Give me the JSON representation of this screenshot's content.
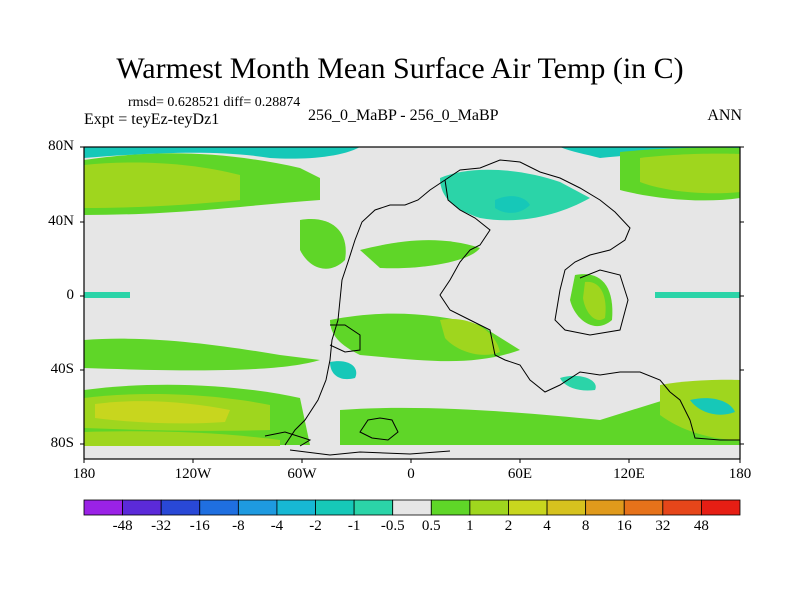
{
  "title": "Warmest Month Mean Surface Air Temp (in C)",
  "stats": "rmsd= 0.628521 diff= 0.28874",
  "expt": "Expt = teyEz-teyDz1",
  "case": "256_0_MaBP - 256_0_MaBP",
  "season": "ANN",
  "lat_ticks": [
    "80N",
    "40N",
    "0",
    "40S",
    "80S"
  ],
  "lon_ticks": [
    "180",
    "120W",
    "60W",
    "0",
    "60E",
    "120E",
    "180"
  ],
  "colorbar": {
    "labels": [
      "-48",
      "-32",
      "-16",
      "-8",
      "-4",
      "-2",
      "-1",
      "-0.5",
      "0.5",
      "1",
      "2",
      "4",
      "8",
      "16",
      "32",
      "48"
    ],
    "colors": [
      "#9a22e6",
      "#5b2ad9",
      "#2948d6",
      "#1f6fe0",
      "#1e9ae0",
      "#17b8d4",
      "#16c8b8",
      "#2bd4a8",
      "#e6e6e6",
      "#5fd628",
      "#9fd61e",
      "#c8d61e",
      "#d6c21e",
      "#e09a1c",
      "#e6721a",
      "#e6461a",
      "#e61e14"
    ]
  },
  "fill_colors": {
    "neutral": "#e6e6e6",
    "pos1": "#5fd628",
    "pos2": "#9fd61e",
    "pos4": "#c8d61e",
    "neg05": "#2bd4a8",
    "neg1": "#16c8b8",
    "neg2": "#17b8d4"
  }
}
